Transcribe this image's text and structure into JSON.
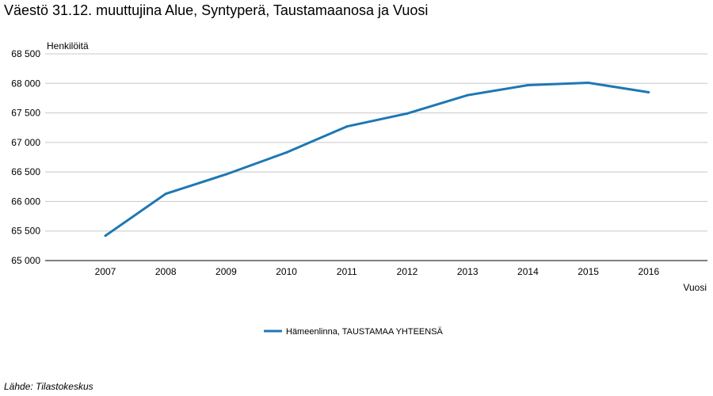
{
  "title": "Väestö 31.12. muuttujina Alue, Syntyperä, Taustamaanosa ja Vuosi",
  "source": "Lähde: Tilastokeskus",
  "colors": {
    "series": "#1f77b4",
    "grid": "#c8c8c8",
    "axis": "#000000"
  },
  "chart_data": {
    "type": "line",
    "ylabel": "Henkilöitä",
    "xlabel": "Vuosi",
    "ylim": [
      65000,
      68500
    ],
    "yticks": [
      65000,
      65500,
      66000,
      66500,
      67000,
      67500,
      68000,
      68500
    ],
    "ytick_labels": [
      "65 000",
      "65 500",
      "66 000",
      "66 500",
      "67 000",
      "67 500",
      "68 000",
      "68 500"
    ],
    "grid": true,
    "legend_position": "bottom-center",
    "categories": [
      "2007",
      "2008",
      "2009",
      "2010",
      "2011",
      "2012",
      "2013",
      "2014",
      "2015",
      "2016"
    ],
    "series": [
      {
        "name": "Hämeenlinna, TAUSTAMAA YHTEENSÄ",
        "values": [
          65420,
          66130,
          66460,
          66830,
          67270,
          67490,
          67800,
          67970,
          68010,
          67850
        ]
      }
    ]
  }
}
